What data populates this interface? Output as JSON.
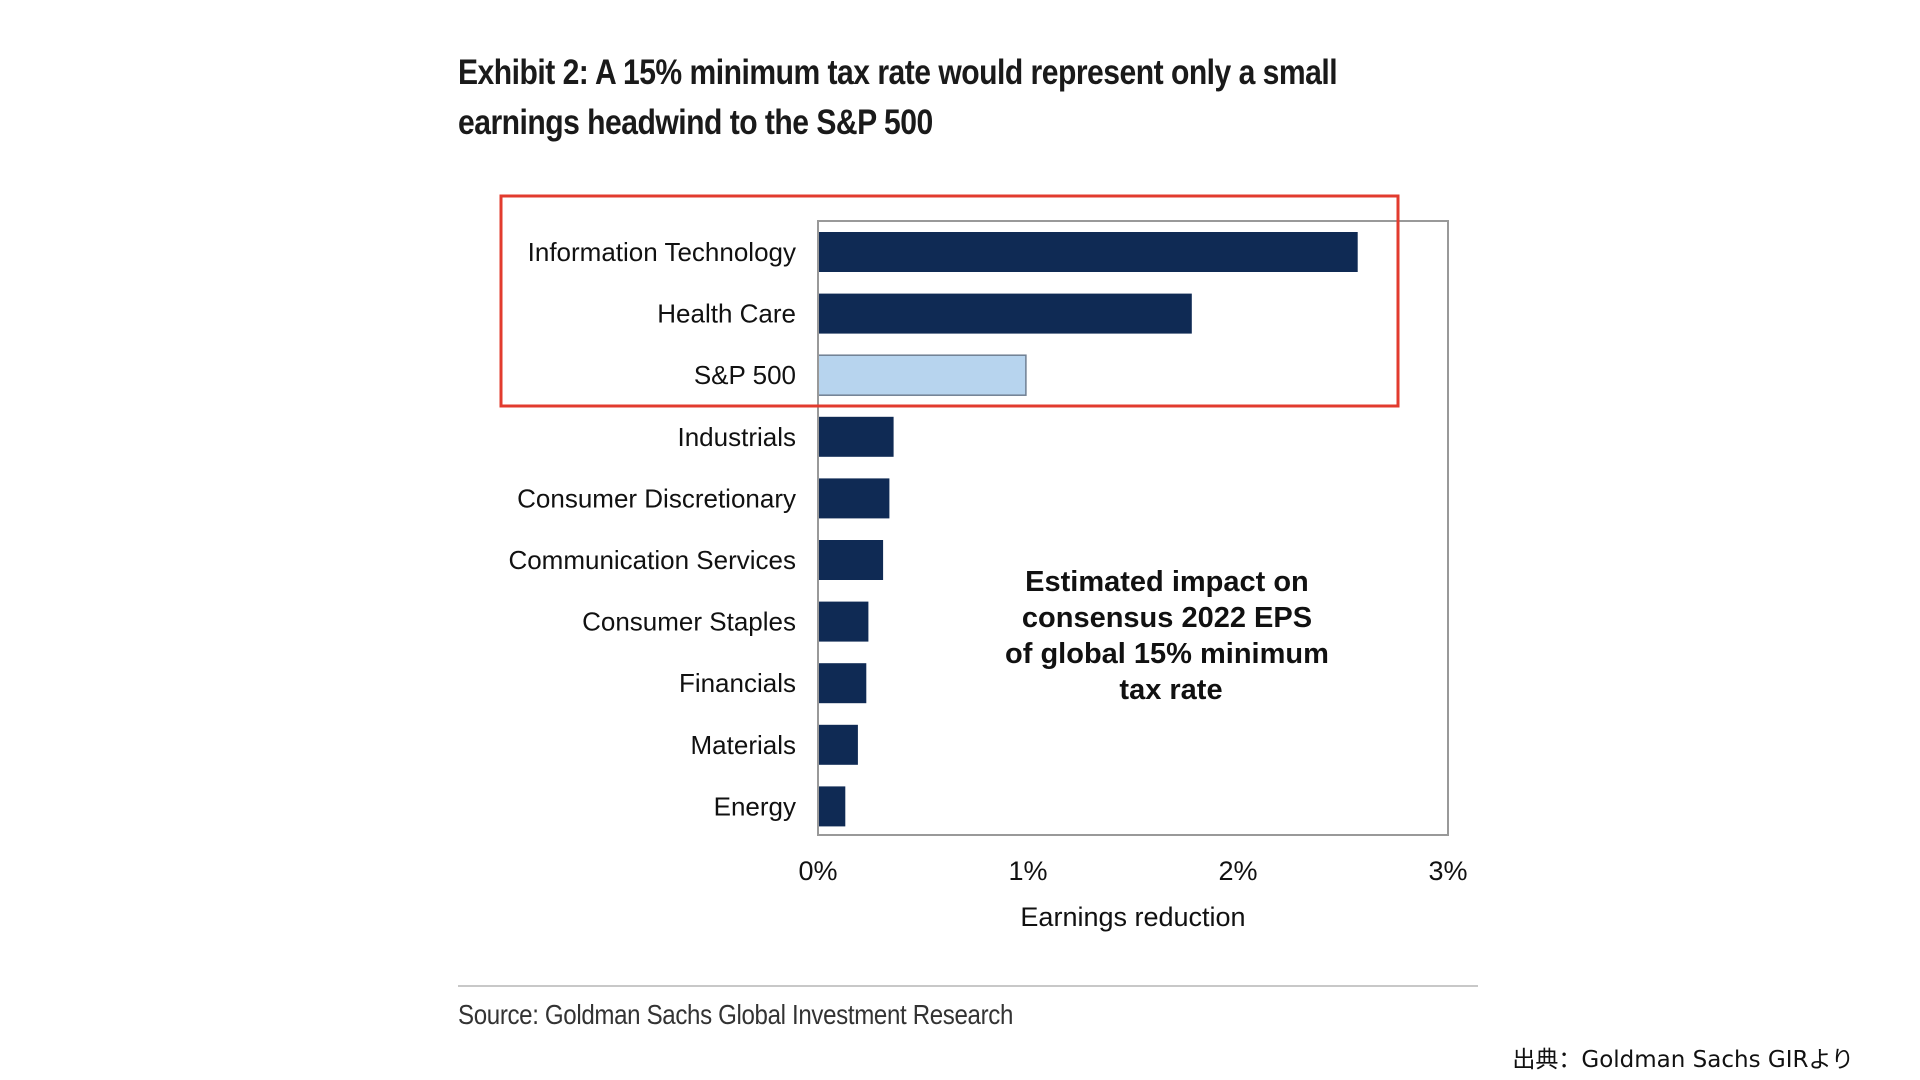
{
  "exhibit": {
    "title_line1": "Exhibit 2: A 15% minimum tax rate would represent only a small",
    "title_line2": "earnings headwind to the S&P 500",
    "source": "Source: Goldman Sachs Global Investment Research",
    "credit": "出典：Goldman Sachs GIRより"
  },
  "colors": {
    "bar": "#0f2a54",
    "highlight_bar": "#b7d4ee",
    "highlight_box": "#e23b2e",
    "axis": "#999999"
  },
  "chart_data": {
    "type": "bar",
    "orientation": "horizontal",
    "categories": [
      "Information Technology",
      "Health Care",
      "S&P 500",
      "Industrials",
      "Consumer Discretionary",
      "Communication Services",
      "Consumer Staples",
      "Financials",
      "Materials",
      "Energy"
    ],
    "values": [
      2.57,
      1.78,
      0.99,
      0.36,
      0.34,
      0.31,
      0.24,
      0.23,
      0.19,
      0.13
    ],
    "value_unit": "%",
    "highlighted_category": "S&P 500",
    "highlight_box_categories": [
      "Information Technology",
      "Health Care",
      "S&P 500"
    ],
    "xlabel": "Earnings reduction",
    "xlim": [
      0,
      3
    ],
    "xticks": [
      0,
      1,
      2,
      3
    ],
    "xtick_labels": [
      "0%",
      "1%",
      "2%",
      "3%"
    ],
    "annotation": [
      "Estimated impact on",
      "consensus 2022 EPS",
      "of global 15% minimum",
      "tax rate"
    ],
    "grid": false,
    "legend": "none"
  }
}
